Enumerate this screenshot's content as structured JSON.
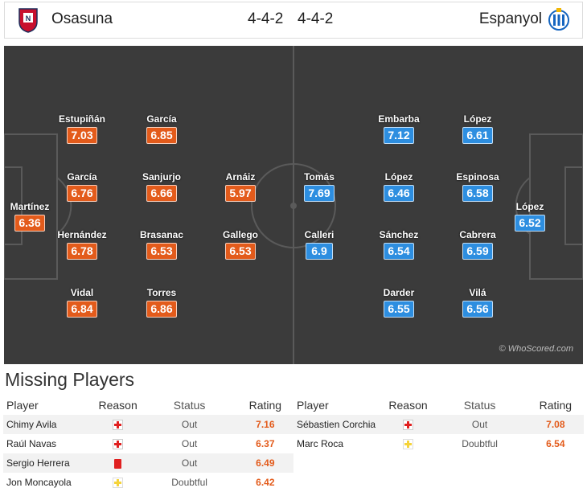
{
  "header": {
    "home_team": "Osasuna",
    "away_team": "Espanyol",
    "home_formation": "4-4-2",
    "away_formation": "4-4-2",
    "home_crest_icon": "osasuna-crest-icon",
    "away_crest_icon": "espanyol-crest-icon"
  },
  "colors": {
    "home": "#e35b1b",
    "away": "#2d8ee0",
    "pitch": "#3b3b3b"
  },
  "pitch": {
    "watermark": "© WhoScored.com",
    "home_players": [
      {
        "name": "Martínez",
        "rating": "6.36"
      },
      {
        "name": "Estupiñán",
        "rating": "7.03"
      },
      {
        "name": "García",
        "rating": "6.76"
      },
      {
        "name": "Hernández",
        "rating": "6.78"
      },
      {
        "name": "Vidal",
        "rating": "6.84"
      },
      {
        "name": "García",
        "rating": "6.85"
      },
      {
        "name": "Sanjurjo",
        "rating": "6.66"
      },
      {
        "name": "Brasanac",
        "rating": "6.53"
      },
      {
        "name": "Torres",
        "rating": "6.86"
      },
      {
        "name": "Arnáiz",
        "rating": "5.97"
      },
      {
        "name": "Gallego",
        "rating": "6.53"
      }
    ],
    "away_players": [
      {
        "name": "López",
        "rating": "6.52"
      },
      {
        "name": "López",
        "rating": "6.61"
      },
      {
        "name": "Espinosa",
        "rating": "6.58"
      },
      {
        "name": "Cabrera",
        "rating": "6.59"
      },
      {
        "name": "Vilá",
        "rating": "6.56"
      },
      {
        "name": "Embarba",
        "rating": "7.12"
      },
      {
        "name": "López",
        "rating": "6.46"
      },
      {
        "name": "Sánchez",
        "rating": "6.54"
      },
      {
        "name": "Darder",
        "rating": "6.55"
      },
      {
        "name": "Tomás",
        "rating": "7.69"
      },
      {
        "name": "Calleri",
        "rating": "6.9"
      }
    ]
  },
  "missing": {
    "title": "Missing Players",
    "columns": [
      "Player",
      "Reason",
      "Status",
      "Rating"
    ],
    "home": [
      {
        "player": "Chimy Avila",
        "reason_icon": "injury-icon",
        "status": "Out",
        "rating": "7.16"
      },
      {
        "player": "Raúl Navas",
        "reason_icon": "injury-icon",
        "status": "Out",
        "rating": "6.37"
      },
      {
        "player": "Sergio Herrera",
        "reason_icon": "red-card-icon",
        "status": "Out",
        "rating": "6.49"
      },
      {
        "player": "Jon Moncayola",
        "reason_icon": "doubtful-icon",
        "status": "Doubtful",
        "rating": "6.42"
      }
    ],
    "away": [
      {
        "player": "Sébastien Corchia",
        "reason_icon": "injury-icon",
        "status": "Out",
        "rating": "7.08"
      },
      {
        "player": "Marc Roca",
        "reason_icon": "doubtful-icon",
        "status": "Doubtful",
        "rating": "6.54"
      }
    ]
  }
}
